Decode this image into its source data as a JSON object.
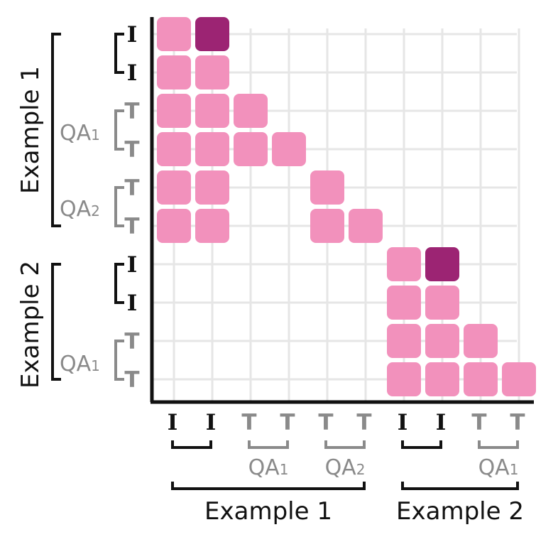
{
  "colors": {
    "cell": "#f291bc",
    "cell_highlight": "#9c2473",
    "grid": "#e6e6e6",
    "axis": "#111111",
    "image_token": "#111111",
    "text_token": "#8a8a8a",
    "group_label": "#111111"
  },
  "tokens": [
    "I",
    "I",
    "T",
    "T",
    "T",
    "T",
    "I",
    "I",
    "T",
    "T"
  ],
  "token_kinds": [
    "image",
    "image",
    "text",
    "text",
    "text",
    "text",
    "image",
    "image",
    "text",
    "text"
  ],
  "qa_labels": {
    "ex1_qa1": "QA",
    "ex1_qa1_sub": "1",
    "ex1_qa2": "QA",
    "ex1_qa2_sub": "2",
    "ex2_qa1": "QA",
    "ex2_qa1_sub": "1"
  },
  "example_labels": {
    "example1": "Example 1",
    "example2": "Example 2"
  },
  "attention_matrix": [
    [
      1,
      2,
      0,
      0,
      0,
      0,
      0,
      0,
      0,
      0
    ],
    [
      1,
      1,
      0,
      0,
      0,
      0,
      0,
      0,
      0,
      0
    ],
    [
      1,
      1,
      1,
      0,
      0,
      0,
      0,
      0,
      0,
      0
    ],
    [
      1,
      1,
      1,
      1,
      0,
      0,
      0,
      0,
      0,
      0
    ],
    [
      1,
      1,
      0,
      0,
      1,
      0,
      0,
      0,
      0,
      0
    ],
    [
      1,
      1,
      0,
      0,
      1,
      1,
      0,
      0,
      0,
      0
    ],
    [
      0,
      0,
      0,
      0,
      0,
      0,
      1,
      2,
      0,
      0
    ],
    [
      0,
      0,
      0,
      0,
      0,
      0,
      1,
      1,
      0,
      0
    ],
    [
      0,
      0,
      0,
      0,
      0,
      0,
      1,
      1,
      1,
      0
    ],
    [
      0,
      0,
      0,
      0,
      0,
      0,
      1,
      1,
      1,
      1
    ]
  ]
}
